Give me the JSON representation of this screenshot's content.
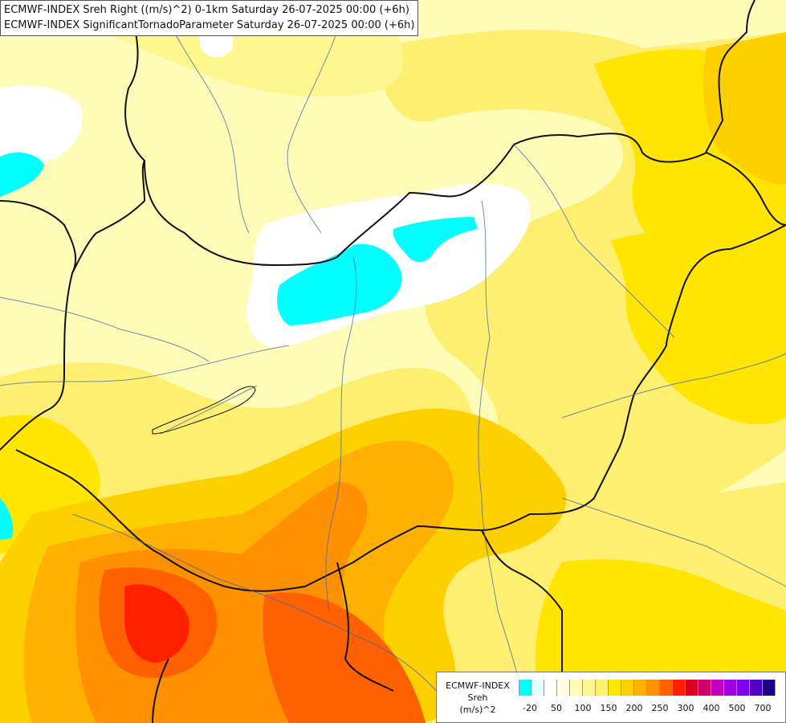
{
  "map": {
    "titles": [
      "ECMWF-INDEX Sreh Right ((m/s)^2) 0-1km Saturday 26-07-2025 00:00 (+6h)",
      "ECMWF-INDEX SignificantTornadoParameter Saturday 26-07-2025 00:00 (+6h)"
    ],
    "colors": {
      "background": "#fffcb8",
      "cyan": "#00ffff",
      "white": "#ffffff",
      "pale_yellow": "#fffcb8",
      "yellow_light": "#ffef70",
      "yellow": "#ffe500",
      "yellow_orange": "#ffd000",
      "orange_light": "#ffb000",
      "orange": "#ff9000",
      "red_orange": "#ff6000",
      "red": "#ff2000",
      "border": "#111111",
      "river": "#3a6ab0"
    }
  },
  "legend": {
    "title_lines": [
      "ECMWF-INDEX",
      "Sreh",
      "(m/s)^2"
    ],
    "swatch_colors": [
      "#00ffff",
      "#e8ffff",
      "#ffffff",
      "#fffde0",
      "#fffcb8",
      "#fff690",
      "#ffef70",
      "#ffe500",
      "#ffd000",
      "#ffb000",
      "#ff9000",
      "#ff6000",
      "#ff2000",
      "#e00020",
      "#d0006a",
      "#c000c0",
      "#a000e0",
      "#8000f0",
      "#5000c0",
      "#200080"
    ],
    "tick_labels": [
      "-20",
      "50",
      "100",
      "150",
      "200",
      "250",
      "300",
      "400",
      "500",
      "700"
    ]
  }
}
